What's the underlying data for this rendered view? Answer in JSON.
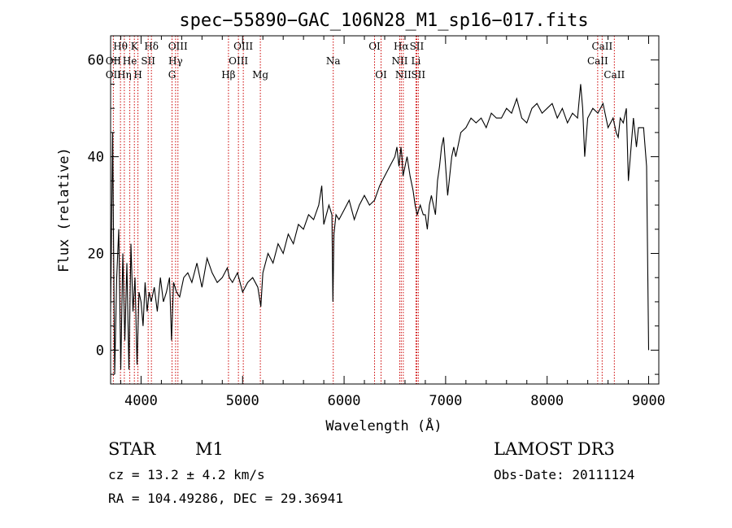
{
  "chart_data": {
    "type": "line",
    "title": "spec−55890−GAC_106N28_M1_sp16−017.fits",
    "xlabel": "Wavelength (Å)",
    "ylabel": "Flux (relative)",
    "xlim": [
      3700,
      9100
    ],
    "ylim": [
      -7,
      65
    ],
    "xticks": [
      "4000",
      "5000",
      "6000",
      "7000",
      "8000",
      "9000"
    ],
    "xtick_values": [
      4000,
      5000,
      6000,
      7000,
      8000,
      9000
    ],
    "yticks": [
      "0",
      "20",
      "40",
      "60"
    ],
    "ytick_values": [
      0,
      20,
      40,
      60
    ],
    "grid": false,
    "series": [
      {
        "x": [
          3700,
          3720,
          3740,
          3760,
          3780,
          3800,
          3820,
          3840,
          3860,
          3880,
          3900,
          3920,
          3940,
          3960,
          3980,
          4000,
          4020,
          4040,
          4060,
          4080,
          4100,
          4130,
          4160,
          4190,
          4220,
          4250,
          4280,
          4300,
          4320,
          4350,
          4380,
          4420,
          4460,
          4500,
          4550,
          4600,
          4650,
          4700,
          4750,
          4800,
          4850,
          4870,
          4900,
          4950,
          5000,
          5050,
          5100,
          5150,
          5180,
          5200,
          5250,
          5300,
          5350,
          5400,
          5450,
          5500,
          5550,
          5600,
          5650,
          5700,
          5750,
          5780,
          5800,
          5850,
          5880,
          5890,
          5900,
          5920,
          5950,
          6000,
          6050,
          6100,
          6150,
          6200,
          6250,
          6300,
          6350,
          6400,
          6450,
          6500,
          6520,
          6540,
          6560,
          6570,
          6580,
          6600,
          6620,
          6650,
          6680,
          6700,
          6720,
          6750,
          6780,
          6800,
          6820,
          6840,
          6860,
          6880,
          6900,
          6920,
          6940,
          6960,
          6980,
          7000,
          7020,
          7040,
          7060,
          7080,
          7100,
          7150,
          7200,
          7250,
          7300,
          7350,
          7400,
          7450,
          7500,
          7550,
          7600,
          7650,
          7700,
          7750,
          7800,
          7850,
          7900,
          7950,
          8000,
          8050,
          8100,
          8150,
          8200,
          8250,
          8300,
          8330,
          8350,
          8370,
          8400,
          8450,
          8500,
          8550,
          8600,
          8650,
          8680,
          8700,
          8720,
          8750,
          8780,
          8800,
          8850,
          8880,
          8900,
          8950,
          8980,
          9000
        ],
        "y": [
          8,
          45,
          -5,
          15,
          25,
          -4,
          20,
          2,
          18,
          -4,
          22,
          8,
          15,
          -3,
          12,
          10,
          5,
          14,
          8,
          12,
          10,
          13,
          8,
          15,
          10,
          12,
          15,
          2,
          14,
          12,
          11,
          15,
          16,
          14,
          18,
          13,
          19,
          16,
          14,
          15,
          17,
          15,
          14,
          16,
          12,
          14,
          15,
          13,
          9,
          16,
          20,
          18,
          22,
          20,
          24,
          22,
          26,
          25,
          28,
          27,
          30,
          34,
          26,
          30,
          28,
          10,
          24,
          28,
          27,
          29,
          31,
          27,
          30,
          32,
          30,
          31,
          34,
          36,
          38,
          40,
          42,
          38,
          42,
          40,
          36,
          38,
          40,
          36,
          33,
          30,
          28,
          30,
          28,
          28,
          25,
          30,
          32,
          30,
          28,
          35,
          38,
          42,
          44,
          38,
          32,
          36,
          40,
          42,
          40,
          45,
          46,
          48,
          47,
          48,
          46,
          49,
          48,
          48,
          50,
          49,
          52,
          48,
          47,
          50,
          51,
          49,
          50,
          51,
          48,
          50,
          47,
          49,
          48,
          55,
          50,
          40,
          48,
          50,
          49,
          51,
          46,
          48,
          45,
          44,
          48,
          47,
          50,
          35,
          48,
          42,
          46,
          46,
          38,
          0
        ]
      }
    ],
    "emission_lines": [
      {
        "name": "Hθ",
        "x": 3797,
        "row": 1
      },
      {
        "name": "OII",
        "x": 3727,
        "row": 2
      },
      {
        "name": "He",
        "x": 3889,
        "row": 2
      },
      {
        "name": "OII",
        "x": 3727,
        "row": 3
      },
      {
        "name": "Hη",
        "x": 3835,
        "row": 3
      },
      {
        "name": "K",
        "x": 3934,
        "row": 1
      },
      {
        "name": "SII",
        "x": 4070,
        "row": 2
      },
      {
        "name": "H",
        "x": 3969,
        "row": 3
      },
      {
        "name": "Hδ",
        "x": 4102,
        "row": 1
      },
      {
        "name": "OIII",
        "x": 4363,
        "row": 1
      },
      {
        "name": "Hγ",
        "x": 4340,
        "row": 2
      },
      {
        "name": "G",
        "x": 4305,
        "row": 3
      },
      {
        "name": "OIII",
        "x": 5007,
        "row": 1
      },
      {
        "name": "OIII",
        "x": 4959,
        "row": 2
      },
      {
        "name": "Hβ",
        "x": 4861,
        "row": 3
      },
      {
        "name": "Mg",
        "x": 5175,
        "row": 3
      },
      {
        "name": "Na",
        "x": 5893,
        "row": 2
      },
      {
        "name": "OI",
        "x": 6300,
        "row": 1
      },
      {
        "name": "OI",
        "x": 6364,
        "row": 3
      },
      {
        "name": "Hα",
        "x": 6563,
        "row": 1
      },
      {
        "name": "SII",
        "x": 6716,
        "row": 1
      },
      {
        "name": "NII",
        "x": 6548,
        "row": 2
      },
      {
        "name": "Li",
        "x": 6708,
        "row": 2
      },
      {
        "name": "NII",
        "x": 6583,
        "row": 3
      },
      {
        "name": "SII",
        "x": 6731,
        "row": 3
      },
      {
        "name": "CaII",
        "x": 8542,
        "row": 1
      },
      {
        "name": "CaII",
        "x": 8498,
        "row": 2
      },
      {
        "name": "CaII",
        "x": 8662,
        "row": 3
      }
    ],
    "line_color": "#cc0000",
    "spectrum_color": "#000000"
  },
  "info": {
    "class": "STAR",
    "subclass": "M1",
    "survey": "LAMOST DR3",
    "cz": "cz = 13.2 ± 4.2 km/s",
    "obsdate": "Obs-Date: 20111124",
    "coords": "RA = 104.49286, DEC =  29.36941"
  }
}
